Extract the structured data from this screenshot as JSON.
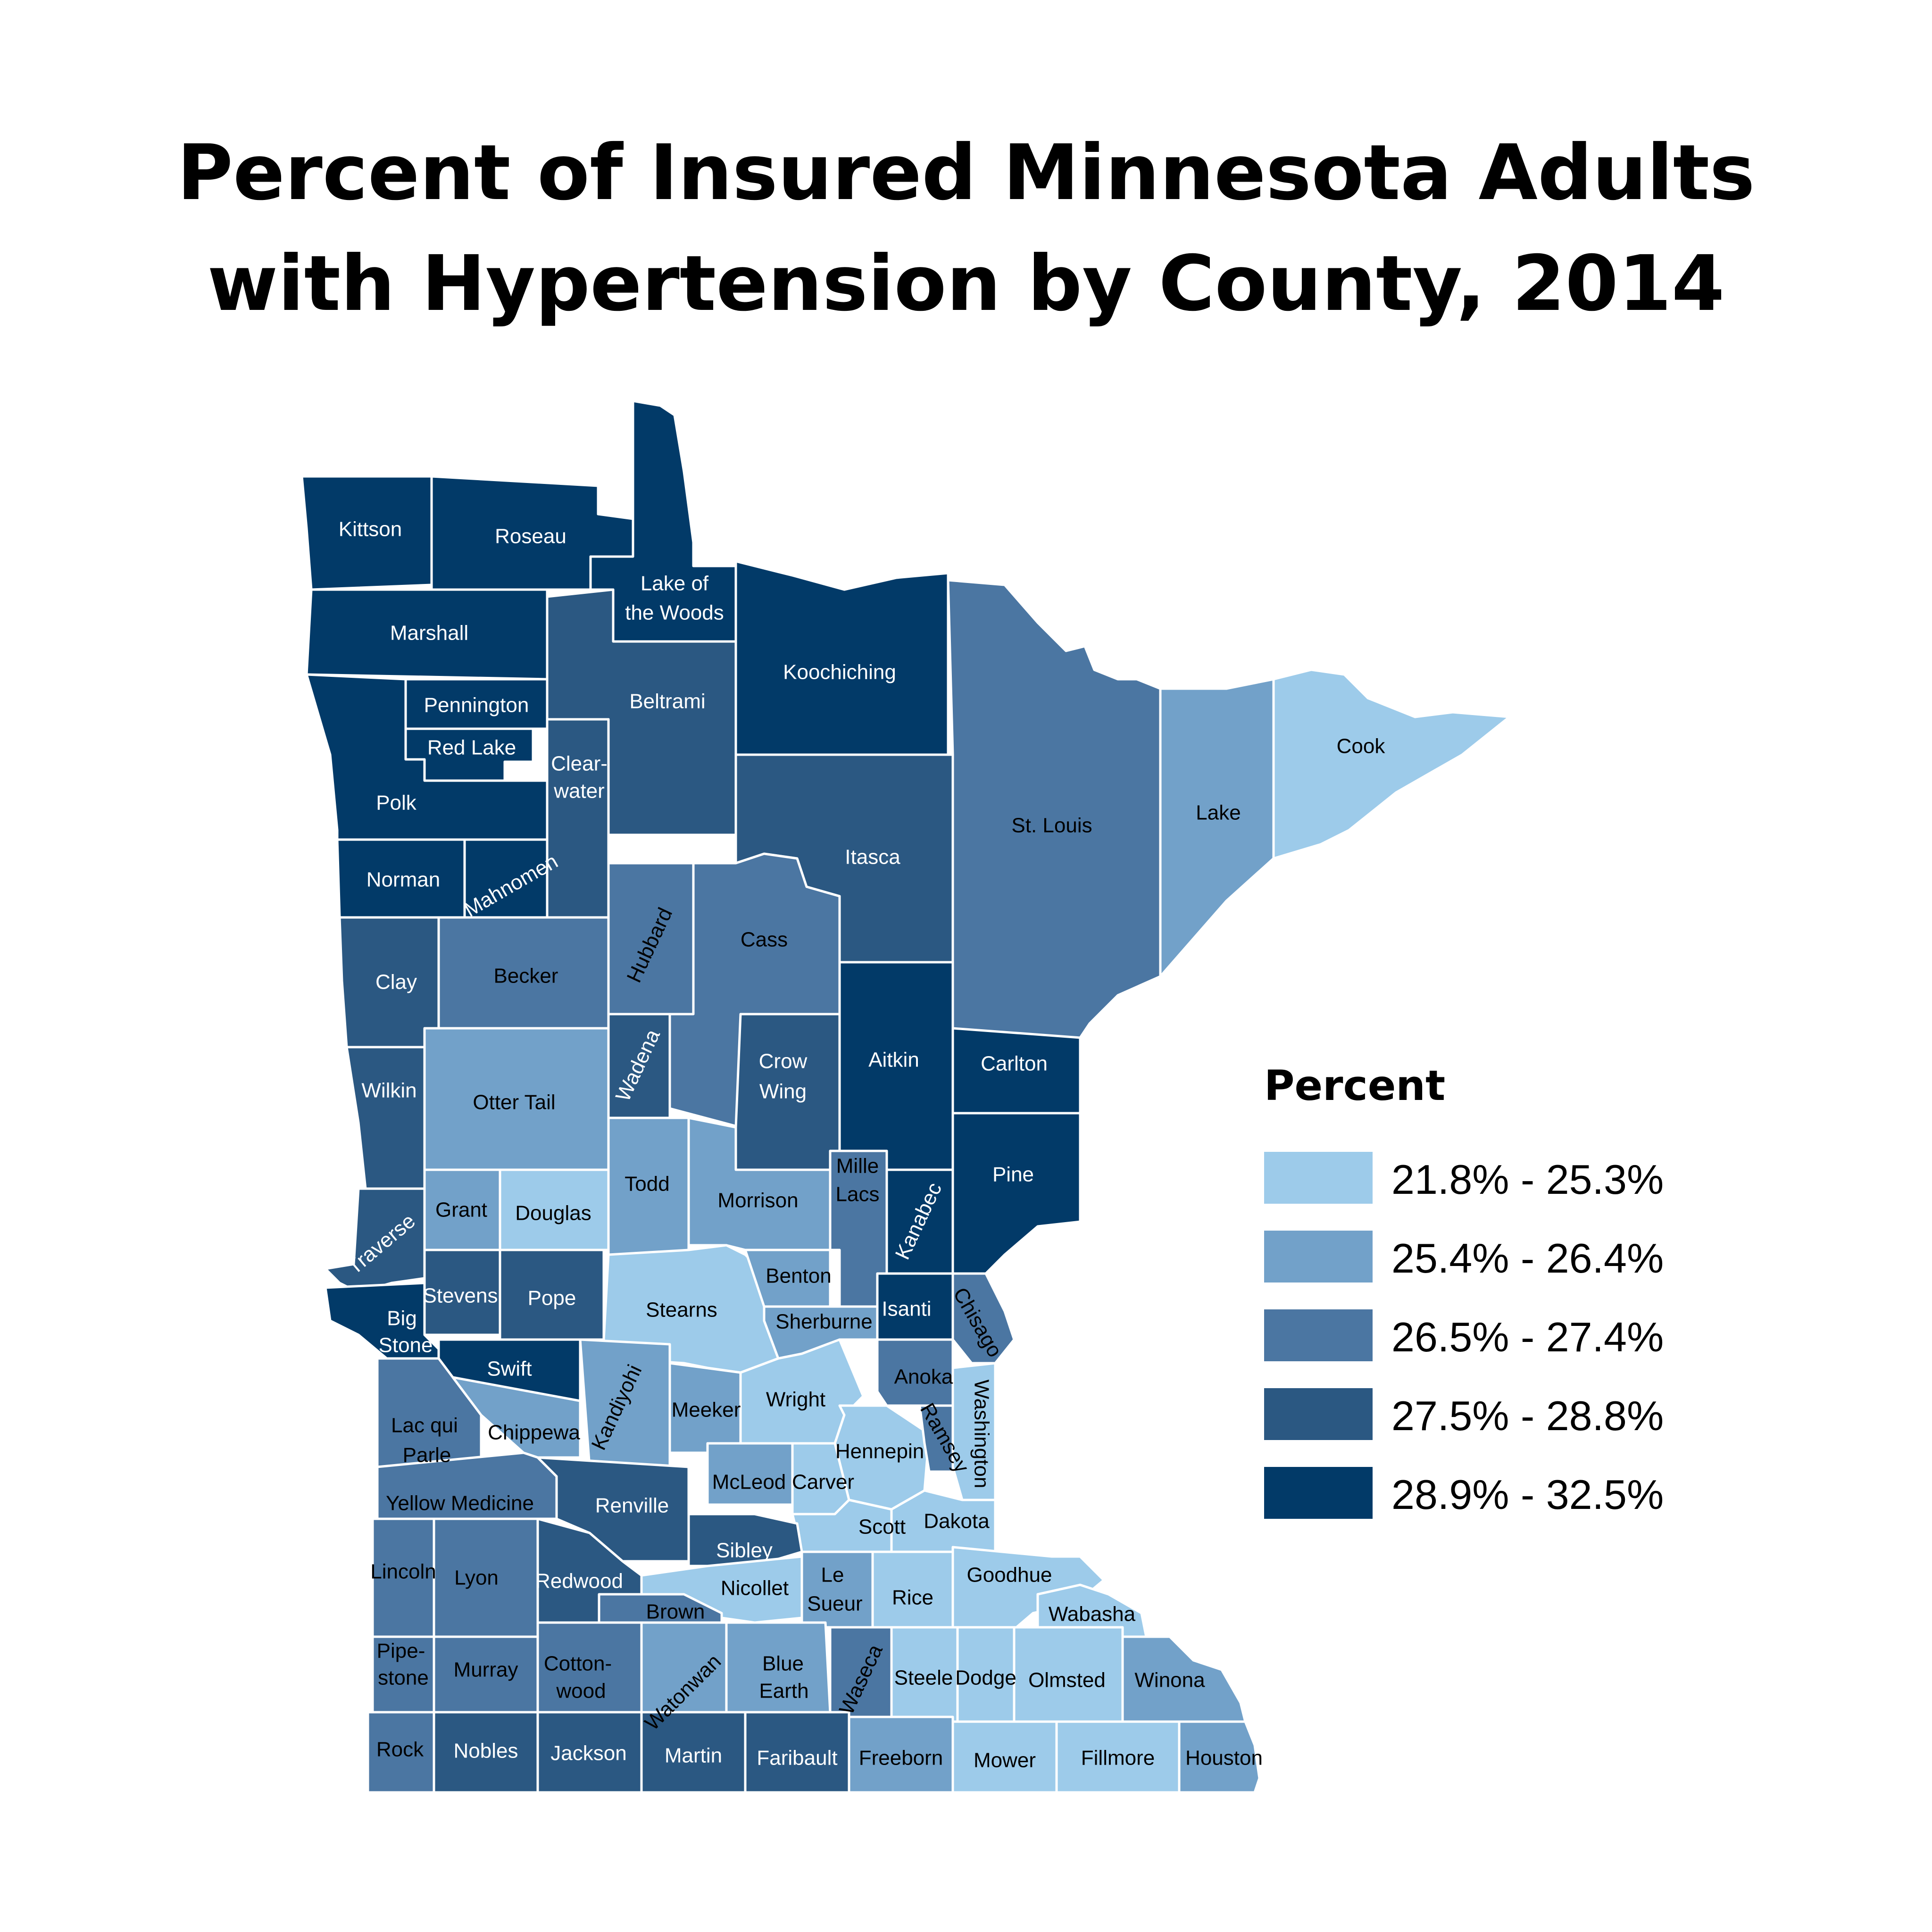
{
  "title": {
    "line1": "Percent of Insured Minnesota Adults",
    "line2": "with Hypertension by County, 2014"
  },
  "legend": {
    "title": "Percent",
    "classes": [
      {
        "label": "21.8% - 25.3%",
        "color": "#9dcbea"
      },
      {
        "label": "25.4% - 26.4%",
        "color": "#72a1c9"
      },
      {
        "label": "26.5% - 27.4%",
        "color": "#4b76a2"
      },
      {
        "label": "27.5% - 28.8%",
        "color": "#2b5882"
      },
      {
        "label": "28.9% - 32.5%",
        "color": "#023a68"
      }
    ]
  },
  "counties": [
    {
      "name": "Kittson",
      "class": 4
    },
    {
      "name": "Roseau",
      "class": 4
    },
    {
      "name": "Lake of the Woods",
      "class": 4
    },
    {
      "name": "Marshall",
      "class": 4
    },
    {
      "name": "Pennington",
      "class": 4
    },
    {
      "name": "Red Lake",
      "class": 4
    },
    {
      "name": "Polk",
      "class": 4
    },
    {
      "name": "Norman",
      "class": 4
    },
    {
      "name": "Mahnomen",
      "class": 4
    },
    {
      "name": "Koochiching",
      "class": 4
    },
    {
      "name": "Beltrami",
      "class": 3
    },
    {
      "name": "Clear-water",
      "class": 3
    },
    {
      "name": "Itasca",
      "class": 3
    },
    {
      "name": "St. Louis",
      "class": 2
    },
    {
      "name": "Lake",
      "class": 1
    },
    {
      "name": "Cook",
      "class": 0
    },
    {
      "name": "Clay",
      "class": 3
    },
    {
      "name": "Becker",
      "class": 2
    },
    {
      "name": "Hubbard",
      "class": 2
    },
    {
      "name": "Cass",
      "class": 2
    },
    {
      "name": "Aitkin",
      "class": 4
    },
    {
      "name": "Carlton",
      "class": 4
    },
    {
      "name": "Wilkin",
      "class": 3
    },
    {
      "name": "Otter Tail",
      "class": 1
    },
    {
      "name": "Wadena",
      "class": 3
    },
    {
      "name": "Crow Wing",
      "class": 3
    },
    {
      "name": "Pine",
      "class": 4
    },
    {
      "name": "Grant",
      "class": 1
    },
    {
      "name": "Douglas",
      "class": 0
    },
    {
      "name": "Todd",
      "class": 1
    },
    {
      "name": "Morrison",
      "class": 1
    },
    {
      "name": "Mille Lacs",
      "class": 2
    },
    {
      "name": "Kanabec",
      "class": 4
    },
    {
      "name": "Traverse",
      "class": 3
    },
    {
      "name": "Stevens",
      "class": 3
    },
    {
      "name": "Pope",
      "class": 3
    },
    {
      "name": "Stearns",
      "class": 0
    },
    {
      "name": "Benton",
      "class": 1
    },
    {
      "name": "Isanti",
      "class": 4
    },
    {
      "name": "Chisago",
      "class": 2
    },
    {
      "name": "Big Stone",
      "class": 4
    },
    {
      "name": "Swift",
      "class": 4
    },
    {
      "name": "Sherburne",
      "class": 1
    },
    {
      "name": "Anoka",
      "class": 2
    },
    {
      "name": "Lac qui Parle",
      "class": 2
    },
    {
      "name": "Chippewa",
      "class": 1
    },
    {
      "name": "Kandiyohi",
      "class": 1
    },
    {
      "name": "Meeker",
      "class": 1
    },
    {
      "name": "Wright",
      "class": 0
    },
    {
      "name": "Hennepin",
      "class": 0
    },
    {
      "name": "Ramsey",
      "class": 2
    },
    {
      "name": "Washington",
      "class": 0
    },
    {
      "name": "Yellow Medicine",
      "class": 2
    },
    {
      "name": "Renville",
      "class": 3
    },
    {
      "name": "McLeod",
      "class": 1
    },
    {
      "name": "Carver",
      "class": 0
    },
    {
      "name": "Scott",
      "class": 0
    },
    {
      "name": "Dakota",
      "class": 0
    },
    {
      "name": "Lincoln",
      "class": 2
    },
    {
      "name": "Lyon",
      "class": 2
    },
    {
      "name": "Redwood",
      "class": 3
    },
    {
      "name": "Sibley",
      "class": 3
    },
    {
      "name": "Nicollet",
      "class": 0
    },
    {
      "name": "Le Sueur",
      "class": 1
    },
    {
      "name": "Rice",
      "class": 0
    },
    {
      "name": "Goodhue",
      "class": 0
    },
    {
      "name": "Wabasha",
      "class": 0
    },
    {
      "name": "Brown",
      "class": 2
    },
    {
      "name": "Pipe-stone",
      "class": 2
    },
    {
      "name": "Murray",
      "class": 2
    },
    {
      "name": "Cotton-wood",
      "class": 2
    },
    {
      "name": "Watonwan",
      "class": 1
    },
    {
      "name": "Blue Earth",
      "class": 1
    },
    {
      "name": "Waseca",
      "class": 2
    },
    {
      "name": "Steele",
      "class": 0
    },
    {
      "name": "Dodge",
      "class": 0
    },
    {
      "name": "Olmsted",
      "class": 0
    },
    {
      "name": "Winona",
      "class": 1
    },
    {
      "name": "Rock",
      "class": 2
    },
    {
      "name": "Nobles",
      "class": 3
    },
    {
      "name": "Jackson",
      "class": 3
    },
    {
      "name": "Martin",
      "class": 3
    },
    {
      "name": "Faribault",
      "class": 3
    },
    {
      "name": "Freeborn",
      "class": 1
    },
    {
      "name": "Mower",
      "class": 0
    },
    {
      "name": "Fillmore",
      "class": 0
    },
    {
      "name": "Houston",
      "class": 1
    }
  ]
}
